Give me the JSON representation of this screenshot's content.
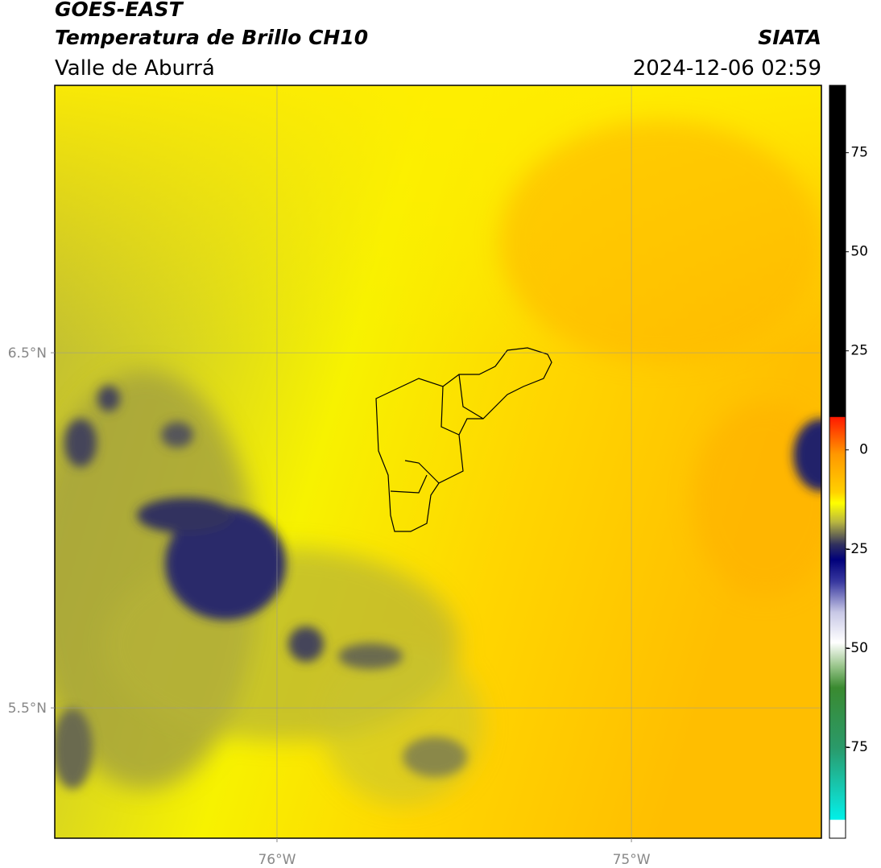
{
  "header": {
    "title": "GOES-EAST",
    "subtitle": "Temperatura de Brillo CH10",
    "region": "Valle de Aburrá",
    "source": "SIATA",
    "timestamp": "2024-12-06 02:59"
  },
  "map": {
    "xlim": [
      -76.627,
      -74.464
    ],
    "ylim": [
      5.133,
      7.253
    ],
    "xticks": [
      {
        "value": -76,
        "label": "76°W"
      },
      {
        "value": -75,
        "label": "75°W"
      }
    ],
    "yticks": [
      {
        "value": 5.5,
        "label": "5.5°N"
      },
      {
        "value": 6.5,
        "label": "6.5°N"
      }
    ]
  },
  "colorbar": {
    "lim": [
      -98,
      92
    ],
    "ticks": [
      -75,
      -50,
      -25,
      0,
      25,
      50,
      75
    ]
  }
}
